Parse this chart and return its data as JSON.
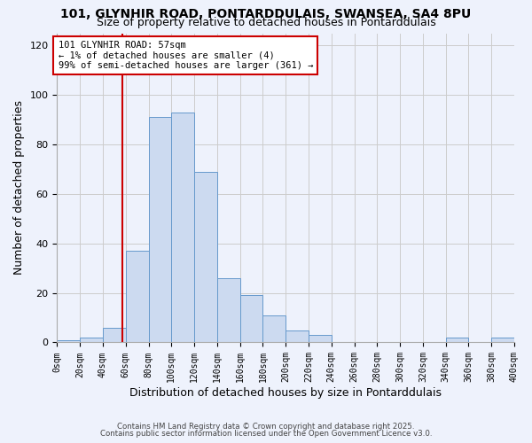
{
  "title1": "101, GLYNHIR ROAD, PONTARDDULAIS, SWANSEA, SA4 8PU",
  "title2": "Size of property relative to detached houses in Pontarddulais",
  "xlabel": "Distribution of detached houses by size in Pontarddulais",
  "ylabel": "Number of detached properties",
  "bin_edges": [
    0,
    20,
    40,
    60,
    80,
    100,
    120,
    140,
    160,
    180,
    200,
    220,
    240,
    260,
    280,
    300,
    320,
    340,
    360,
    380,
    400
  ],
  "counts": [
    1,
    2,
    6,
    37,
    91,
    93,
    69,
    26,
    19,
    11,
    5,
    3,
    0,
    0,
    0,
    0,
    0,
    2,
    0,
    2
  ],
  "bar_color": "#ccdaf0",
  "bar_edge_color": "#6699cc",
  "vline_color": "#cc0000",
  "vline_x": 57,
  "annotation_line1": "101 GLYNHIR ROAD: 57sqm",
  "annotation_line2": "← 1% of detached houses are smaller (4)",
  "annotation_line3": "99% of semi-detached houses are larger (361) →",
  "annotation_box_color": "#ffffff",
  "annotation_box_edge": "#cc0000",
  "ylim": [
    0,
    125
  ],
  "yticks": [
    0,
    20,
    40,
    60,
    80,
    100,
    120
  ],
  "grid_color": "#cccccc",
  "bg_color": "#eef2fc",
  "footer1": "Contains HM Land Registry data © Crown copyright and database right 2025.",
  "footer2": "Contains public sector information licensed under the Open Government Licence v3.0."
}
